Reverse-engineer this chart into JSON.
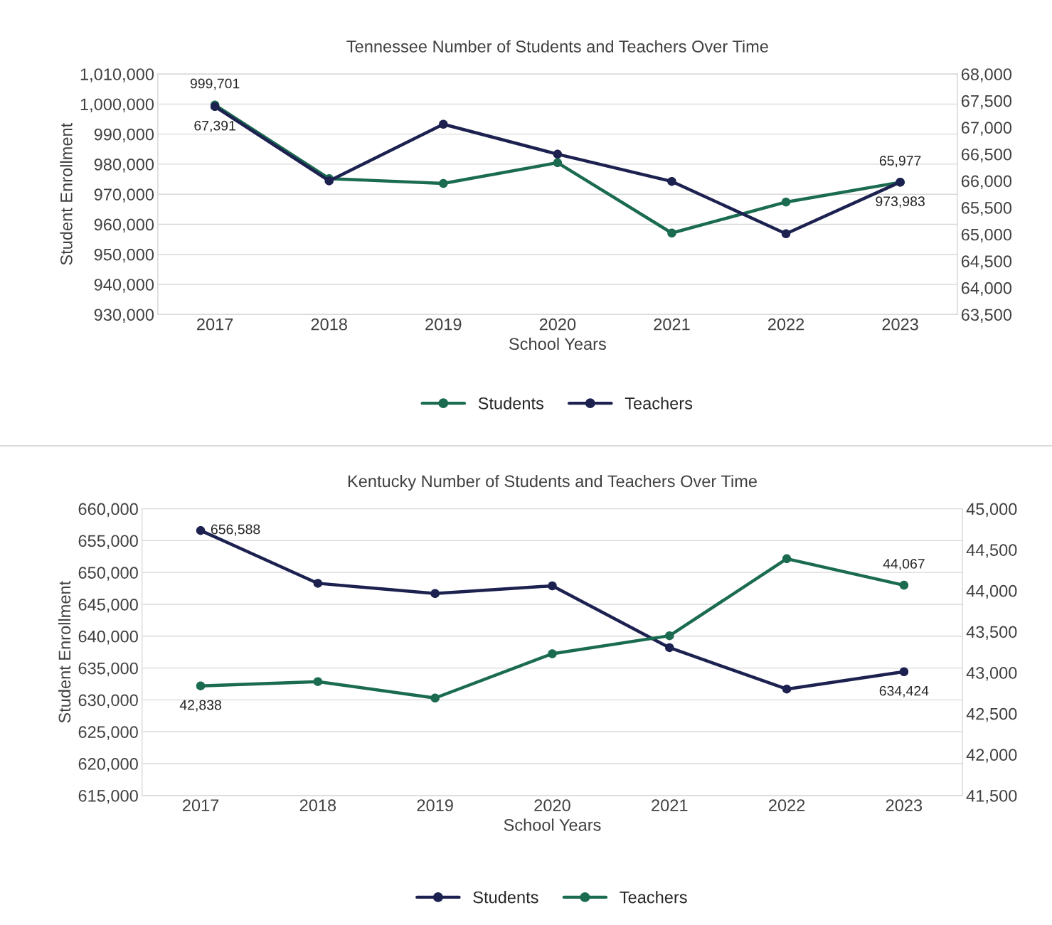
{
  "chart_data": [
    {
      "type": "line",
      "title": "Tennessee Number of Students and Teachers Over Time",
      "xlabel": "School Years",
      "ylabel": "Student Enrollment",
      "categories": [
        "2017",
        "2018",
        "2019",
        "2020",
        "2021",
        "2022",
        "2023"
      ],
      "series": [
        {
          "name": "Students",
          "color": "#1a6b50",
          "values": [
            999701,
            975200,
            973600,
            980500,
            957100,
            967400,
            973983
          ],
          "value_labels": [
            "999,701",
            null,
            null,
            null,
            null,
            null,
            "973,983"
          ]
        },
        {
          "name": "Teachers",
          "color": "#1c2150",
          "axis": "y2",
          "values": [
            67391,
            66000,
            67060,
            66500,
            65990,
            65010,
            65977
          ],
          "value_labels": [
            "67,391",
            null,
            null,
            null,
            null,
            null,
            "65,977"
          ]
        }
      ],
      "ylim": [
        930000,
        1010000
      ],
      "yticks": [
        {
          "value": 930000,
          "label": "930,000"
        },
        {
          "value": 940000,
          "label": "940,000"
        },
        {
          "value": 950000,
          "label": "950,000"
        },
        {
          "value": 960000,
          "label": "960,000"
        },
        {
          "value": 970000,
          "label": "970,000"
        },
        {
          "value": 980000,
          "label": "980,000"
        },
        {
          "value": 990000,
          "label": "990,000"
        },
        {
          "value": 1000000,
          "label": "1,000,000"
        },
        {
          "value": 1010000,
          "label": "1,010,000"
        }
      ],
      "y2lim": [
        63500,
        68000
      ],
      "y2ticks": [
        {
          "value": 63500,
          "label": "63,500"
        },
        {
          "value": 64000,
          "label": "64,000"
        },
        {
          "value": 64500,
          "label": "64,500"
        },
        {
          "value": 65000,
          "label": "65,000"
        },
        {
          "value": 65500,
          "label": "65,500"
        },
        {
          "value": 66000,
          "label": "66,000"
        },
        {
          "value": 66500,
          "label": "66,500"
        },
        {
          "value": 67000,
          "label": "67,000"
        },
        {
          "value": 67500,
          "label": "67,500"
        },
        {
          "value": 68000,
          "label": "68,000"
        }
      ],
      "grid": "y",
      "legend": "bottom",
      "marker": "circle",
      "line_style": "solid"
    },
    {
      "type": "line",
      "title": "Kentucky Number of Students and Teachers Over Time",
      "xlabel": "School Years",
      "ylabel": "Student Enrollment",
      "categories": [
        "2017",
        "2018",
        "2019",
        "2020",
        "2021",
        "2022",
        "2023"
      ],
      "series": [
        {
          "name": "Students",
          "color": "#1c2150",
          "values": [
            656588,
            648300,
            646700,
            647900,
            638200,
            631700,
            634424
          ],
          "value_labels": [
            "656,588",
            null,
            null,
            null,
            null,
            null,
            "634,424"
          ]
        },
        {
          "name": "Teachers",
          "color": "#1a6b50",
          "axis": "y2",
          "values": [
            42838,
            42890,
            42690,
            43230,
            43450,
            44390,
            44067
          ],
          "value_labels": [
            "42,838",
            null,
            null,
            null,
            null,
            null,
            "44,067"
          ]
        }
      ],
      "ylim": [
        615000,
        660000
      ],
      "yticks": [
        {
          "value": 615000,
          "label": "615,000"
        },
        {
          "value": 620000,
          "label": "620,000"
        },
        {
          "value": 625000,
          "label": "625,000"
        },
        {
          "value": 630000,
          "label": "630,000"
        },
        {
          "value": 635000,
          "label": "635,000"
        },
        {
          "value": 640000,
          "label": "640,000"
        },
        {
          "value": 645000,
          "label": "645,000"
        },
        {
          "value": 650000,
          "label": "650,000"
        },
        {
          "value": 655000,
          "label": "655,000"
        },
        {
          "value": 660000,
          "label": "660,000"
        }
      ],
      "y2lim": [
        41500,
        45000
      ],
      "y2ticks": [
        {
          "value": 41500,
          "label": "41,500"
        },
        {
          "value": 42000,
          "label": "42,000"
        },
        {
          "value": 42500,
          "label": "42,500"
        },
        {
          "value": 43000,
          "label": "43,000"
        },
        {
          "value": 43500,
          "label": "43,500"
        },
        {
          "value": 44000,
          "label": "44,000"
        },
        {
          "value": 44500,
          "label": "44,500"
        },
        {
          "value": 45000,
          "label": "45,000"
        }
      ],
      "grid": "y",
      "legend": "bottom",
      "marker": "circle",
      "line_style": "solid"
    }
  ]
}
